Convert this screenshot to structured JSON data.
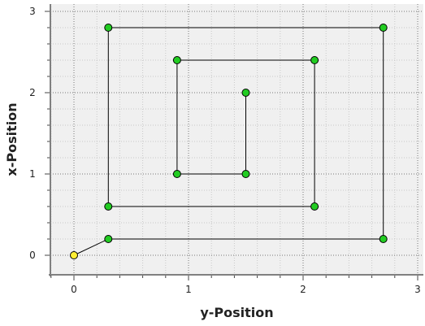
{
  "chart_data": {
    "type": "line",
    "title": "",
    "xlabel": "y-Position",
    "ylabel": "x-Position",
    "xlim": [
      -0.2,
      3.05
    ],
    "ylim": [
      -0.15,
      3.1
    ],
    "x_ticks": [
      0,
      1,
      2,
      3
    ],
    "y_ticks": [
      0,
      1,
      2,
      3
    ],
    "x_tick_labels": [
      "0",
      "1",
      "2",
      "3"
    ],
    "y_tick_labels": [
      "0",
      "1",
      "2",
      "3"
    ],
    "grid": true,
    "grid_style": "dotted",
    "series": [
      {
        "x": [
          0,
          0.3,
          2.7,
          2.7,
          0.3,
          0.3,
          2.1,
          2.1,
          0.9,
          0.9,
          1.5,
          1.5
        ],
        "y": [
          0,
          0.2,
          0.2,
          2.8,
          2.8,
          0.6,
          0.6,
          2.4,
          2.4,
          1.0,
          1.0,
          2.0
        ],
        "line_color": "#000000",
        "marker_color": "#22cc22",
        "first_marker_color": "#ffee33",
        "marker_edge_color": "#000000"
      }
    ],
    "plot_background": "#f0f0f0"
  }
}
